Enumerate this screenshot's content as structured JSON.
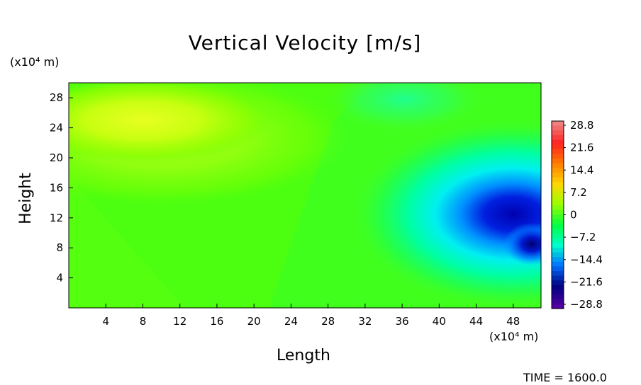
{
  "chart_data": {
    "type": "heatmap",
    "title": "Vertical Velocity [m/s]",
    "xlabel": "Length",
    "ylabel": "Height",
    "x_unit": "(x10⁴ m)",
    "y_unit": "(x10⁴ m)",
    "xlim": [
      0,
      51
    ],
    "ylim": [
      0,
      30
    ],
    "x_ticks": [
      "4",
      "8",
      "12",
      "16",
      "20",
      "24",
      "28",
      "32",
      "36",
      "40",
      "44",
      "48"
    ],
    "y_ticks": [
      "4",
      "8",
      "12",
      "16",
      "20",
      "24",
      "28"
    ],
    "colorbar": {
      "min": -28.8,
      "max": 28.8,
      "labels": [
        "28.8",
        "21.6",
        "14.4",
        "7.2",
        "0",
        "−7.2",
        "−14.4",
        "−21.6",
        "−28.8"
      ],
      "colors": [
        "#f08080",
        "#ff2020",
        "#ff7f00",
        "#ffd700",
        "#9aff00",
        "#00ff40",
        "#00ffcc",
        "#0070ff",
        "#000080",
        "#5000a0"
      ]
    },
    "features": [
      {
        "kind": "max",
        "x": 8,
        "y": 25,
        "value": 5
      },
      {
        "kind": "min",
        "x": 48,
        "y": 12.5,
        "value": -24
      },
      {
        "kind": "min",
        "x": 50,
        "y": 8.5,
        "value": -26
      }
    ],
    "time_label": "TIME = 1600.0"
  }
}
